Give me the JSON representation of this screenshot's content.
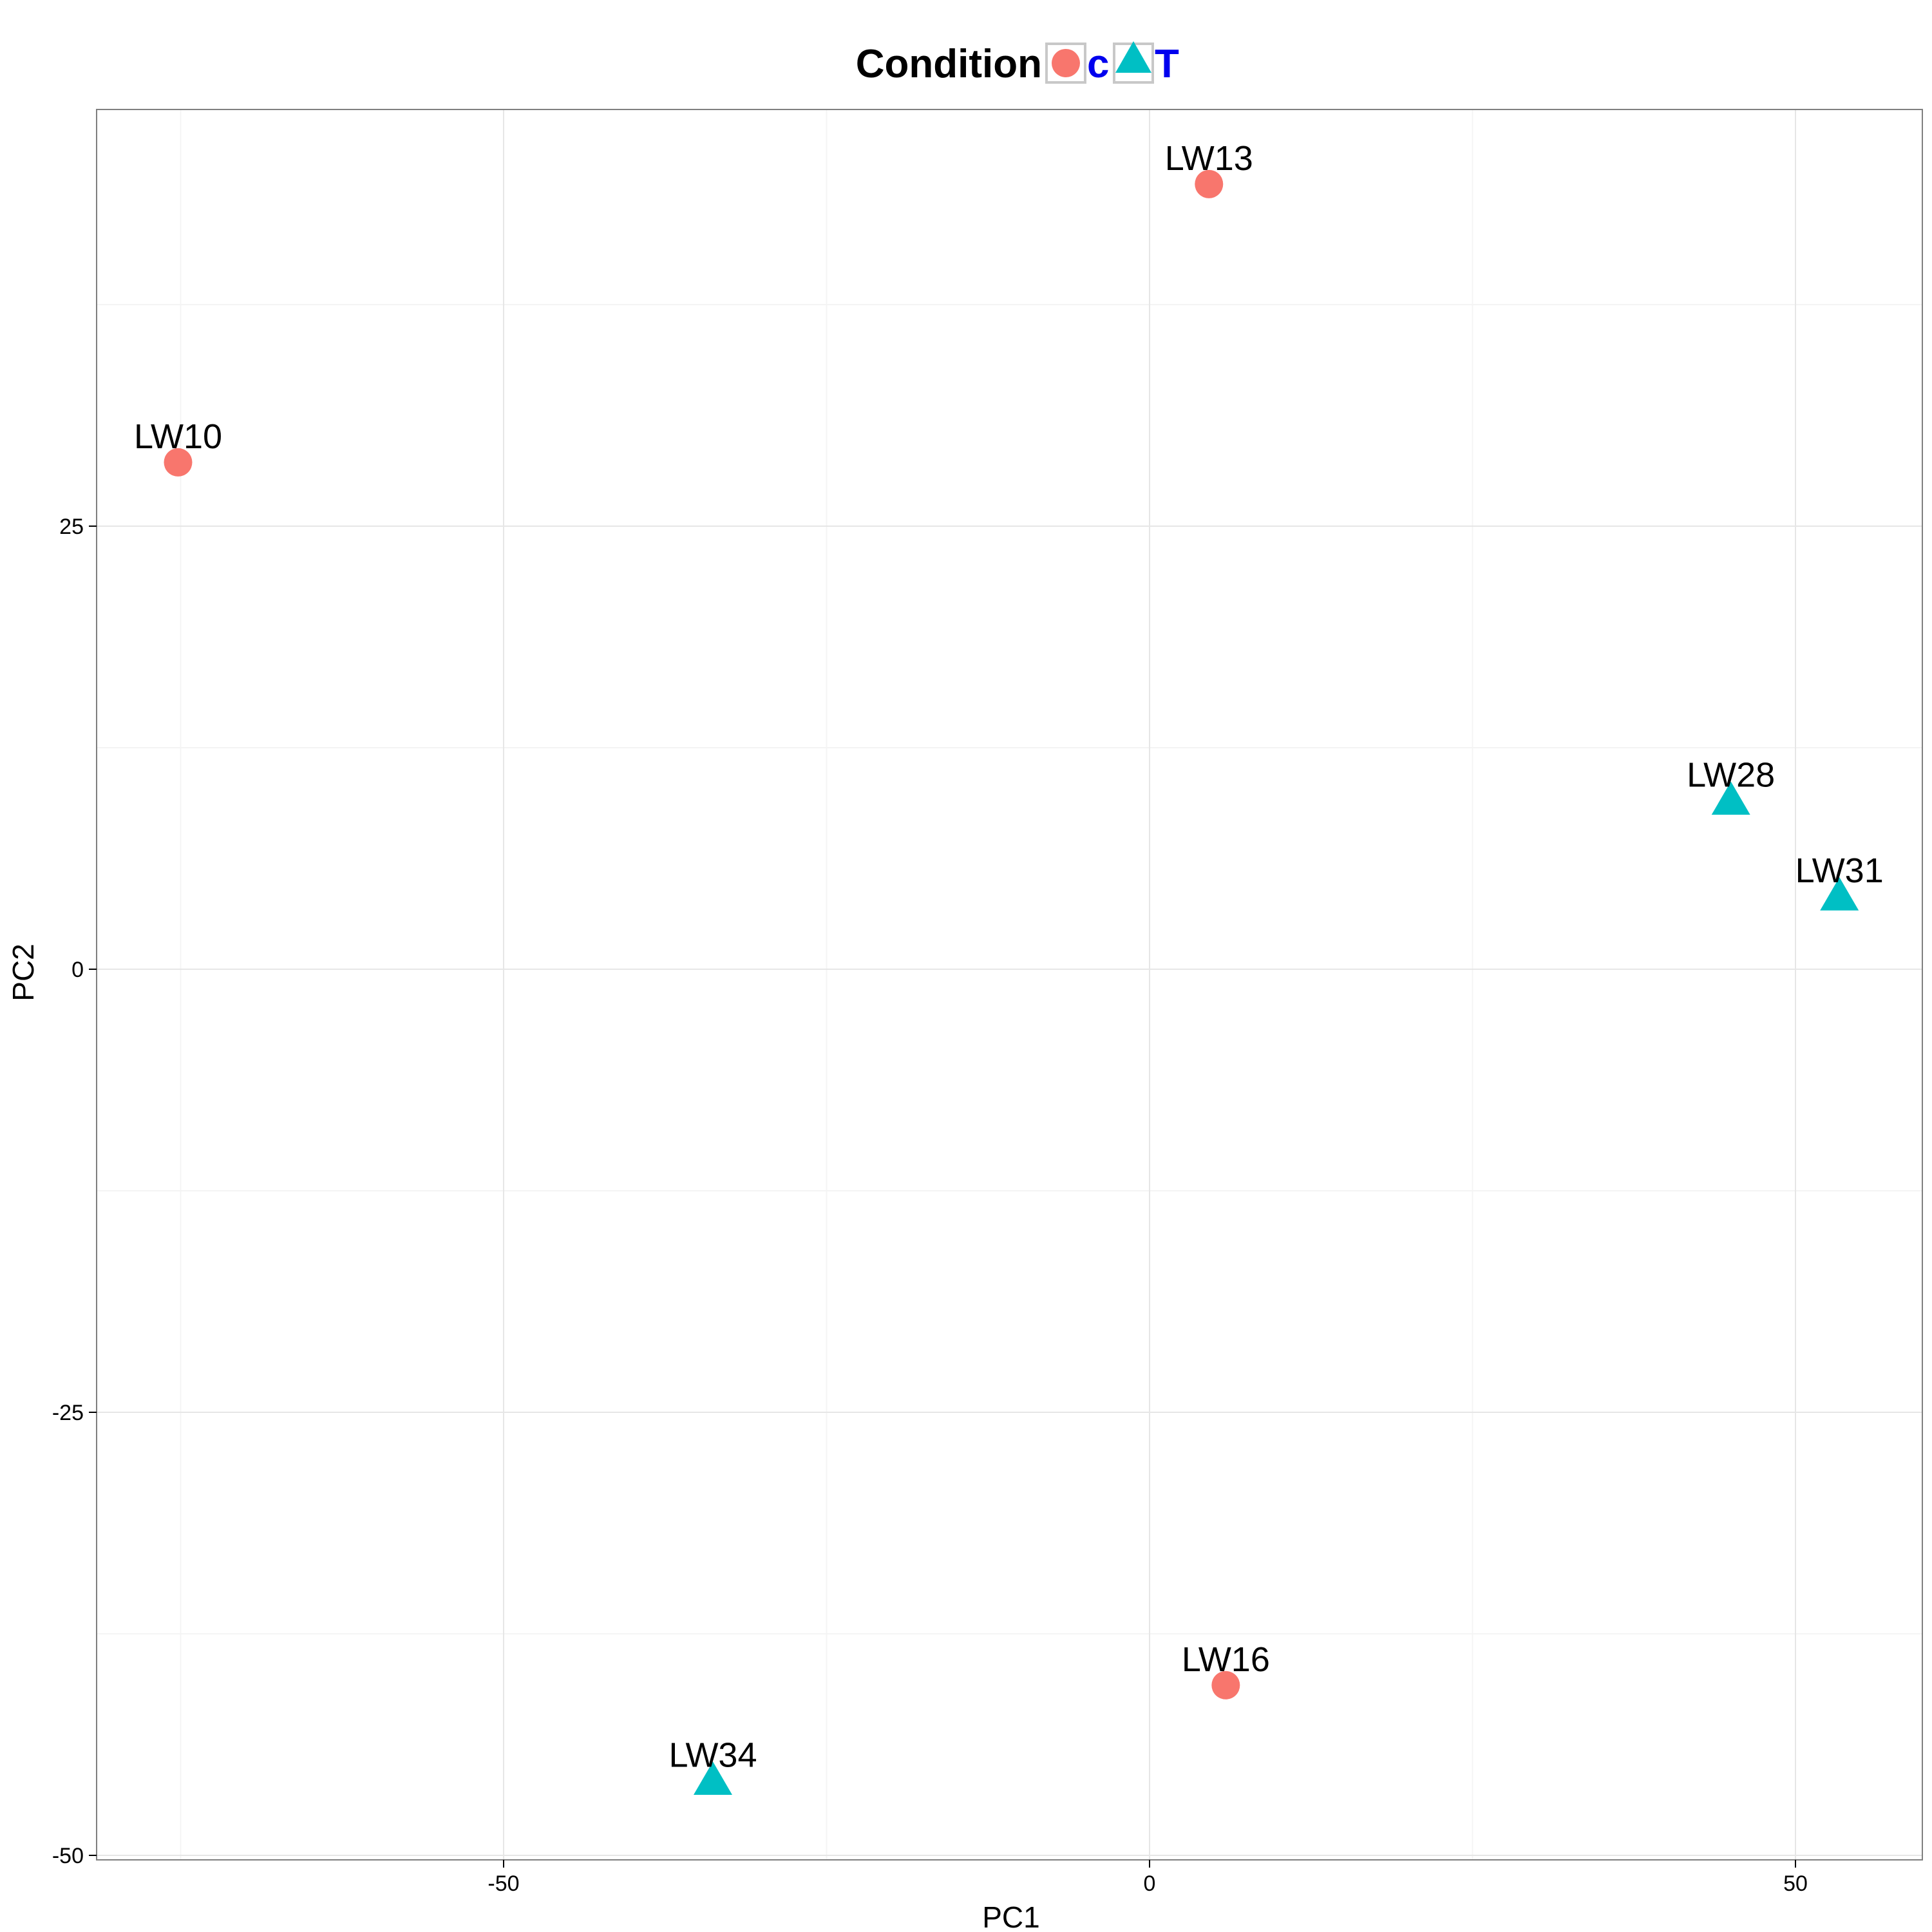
{
  "chart_data": {
    "type": "scatter",
    "title": "",
    "xlabel": "PC1",
    "ylabel": "PC2",
    "xlim": [
      -75,
      60
    ],
    "ylim": [
      -50.3,
      48.5
    ],
    "x_ticks": [
      -50,
      0,
      50
    ],
    "y_ticks": [
      -50,
      -25,
      0,
      25
    ],
    "x_tick_labels": [
      "-50",
      "0",
      "50"
    ],
    "y_tick_labels": [
      "-50",
      "-25",
      "0",
      "25"
    ],
    "grid": true,
    "legend": {
      "title": "Condition",
      "placement": "top",
      "entries": [
        {
          "label": "c",
          "shape": "circle",
          "color": "#F8766D"
        },
        {
          "label": "T",
          "shape": "triangle",
          "color": "#00BFC4"
        }
      ],
      "label_color": "#0000EE"
    },
    "series": [
      {
        "name": "c",
        "shape": "circle",
        "color": "#F8766D",
        "points": [
          {
            "label": "LW10",
            "x": -75.2,
            "y": 28.6
          },
          {
            "label": "LW13",
            "x": 4.6,
            "y": 44.3
          },
          {
            "label": "LW16",
            "x": 5.9,
            "y": -40.4
          }
        ]
      },
      {
        "name": "T",
        "shape": "triangle",
        "color": "#00BFC4",
        "points": [
          {
            "label": "LW28",
            "x": 45.0,
            "y": 9.5
          },
          {
            "label": "LW31",
            "x": 53.4,
            "y": 4.1
          },
          {
            "label": "LW34",
            "x": -33.8,
            "y": -45.8
          }
        ]
      }
    ]
  }
}
